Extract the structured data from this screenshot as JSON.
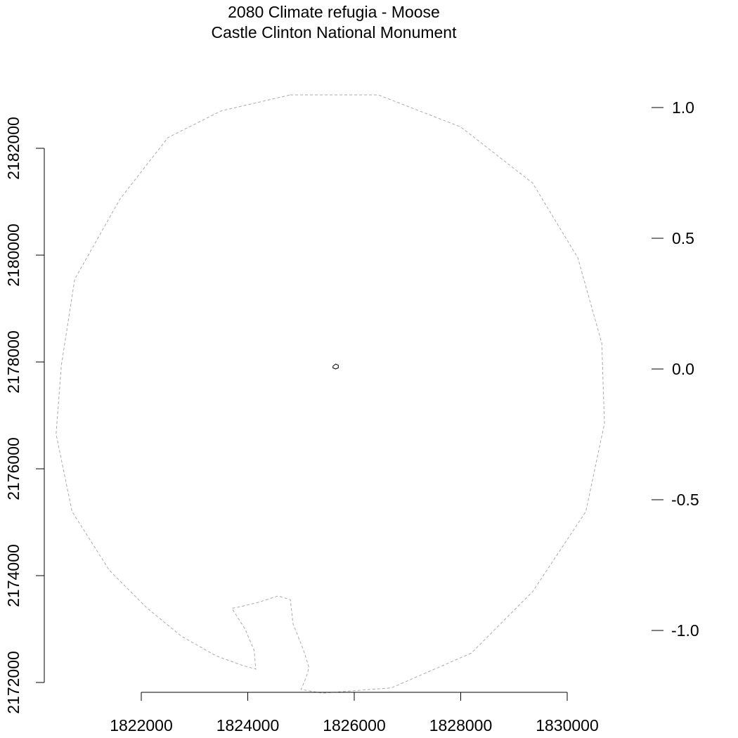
{
  "chart_data": {
    "type": "map",
    "title": "2080 Climate refugia - Moose",
    "subtitle": "Castle Clinton National Monument",
    "x_axis": {
      "ticks": [
        1822000,
        1824000,
        1826000,
        1828000,
        1830000
      ],
      "range": [
        1822000,
        1830000
      ]
    },
    "y_axis": {
      "ticks": [
        2172000,
        2174000,
        2176000,
        2178000,
        2180000,
        2182000
      ],
      "range": [
        2172000,
        2182000
      ]
    },
    "legend_scale": {
      "ticks": [
        "1.0",
        "0.5",
        "0.0",
        "-0.5",
        "-1.0"
      ],
      "values": [
        1.0,
        0.5,
        0.0,
        -0.5,
        -1.0
      ]
    },
    "boundary_buffer": {
      "style": "dashed",
      "color": "#aaaaaa",
      "points": [
        [
          1824800,
          2183000
        ],
        [
          1826450,
          2183000
        ],
        [
          1828000,
          2182400
        ],
        [
          1829350,
          2181350
        ],
        [
          1830200,
          2179950
        ],
        [
          1830650,
          2178350
        ],
        [
          1830700,
          2176850
        ],
        [
          1830350,
          2175200
        ],
        [
          1829350,
          2173700
        ],
        [
          1828200,
          2172550
        ],
        [
          1826700,
          2171900
        ],
        [
          1825400,
          2171800
        ],
        [
          1825000,
          2171870
        ],
        [
          1825100,
          2172100
        ],
        [
          1825150,
          2172280
        ],
        [
          1825050,
          2172600
        ],
        [
          1824850,
          2173100
        ],
        [
          1824800,
          2173550
        ],
        [
          1824570,
          2173620
        ],
        [
          1824200,
          2173500
        ],
        [
          1823870,
          2173420
        ],
        [
          1823700,
          2173390
        ],
        [
          1823950,
          2173000
        ],
        [
          1824120,
          2172600
        ],
        [
          1824150,
          2172250
        ],
        [
          1823900,
          2172320
        ],
        [
          1823400,
          2172500
        ],
        [
          1822750,
          2172870
        ],
        [
          1822100,
          2173400
        ],
        [
          1821400,
          2174100
        ],
        [
          1820700,
          2175200
        ],
        [
          1820400,
          2176650
        ],
        [
          1820500,
          2177950
        ],
        [
          1820750,
          2179550
        ],
        [
          1821600,
          2181050
        ],
        [
          1822500,
          2182200
        ],
        [
          1823500,
          2182700
        ]
      ]
    },
    "site_outline": {
      "color": "#000000",
      "points": [
        [
          1825600,
          2177920
        ],
        [
          1825650,
          2177960
        ],
        [
          1825700,
          2177940
        ],
        [
          1825700,
          2177890
        ],
        [
          1825650,
          2177870
        ],
        [
          1825600,
          2177890
        ]
      ]
    }
  }
}
